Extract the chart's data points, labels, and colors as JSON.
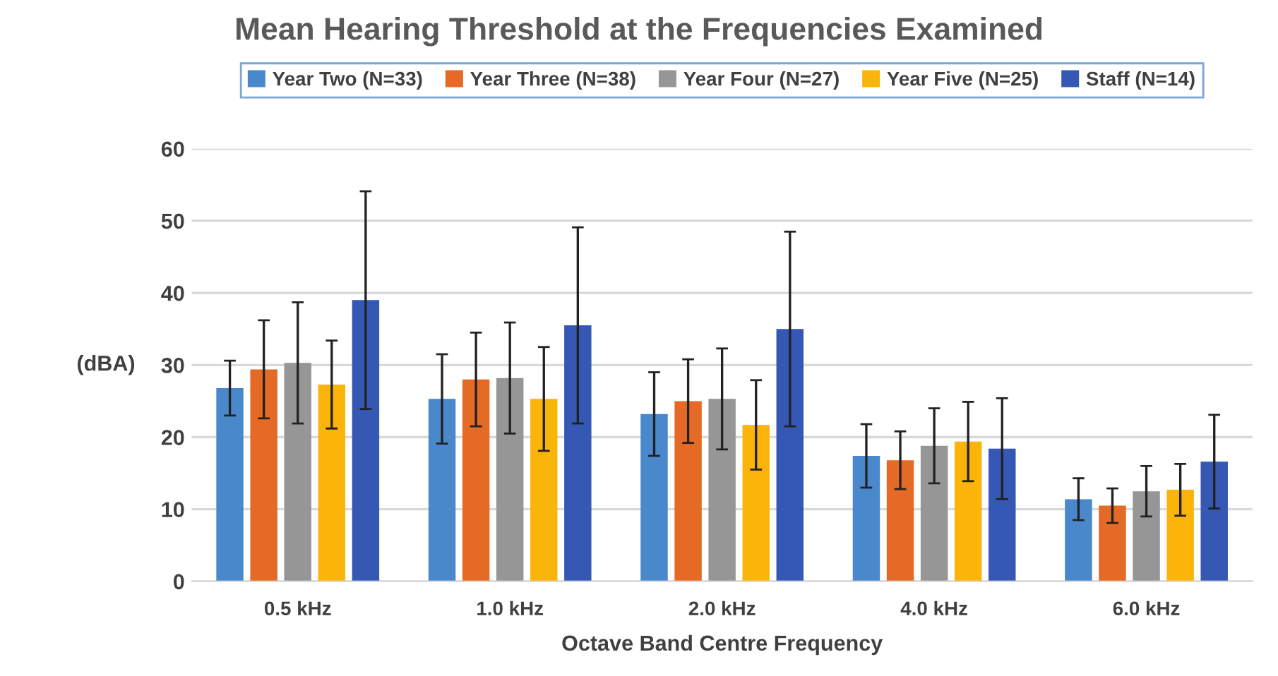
{
  "chart_data": {
    "type": "bar",
    "title": "Mean Hearing Threshold at the Frequencies Examined",
    "xlabel": "Octave Band Centre Frequency",
    "ylabel": "(dBA)",
    "categories": [
      "0.5 kHz",
      "1.0 kHz",
      "2.0 kHz",
      "4.0 kHz",
      "6.0 kHz"
    ],
    "series": [
      {
        "name": "Year Two (N=33)",
        "color": "#4a88cc",
        "values": [
          26.8,
          25.3,
          23.2,
          17.4,
          11.4
        ],
        "errors": [
          3.8,
          6.2,
          5.8,
          4.4,
          2.9
        ]
      },
      {
        "name": "Year Three (N=38)",
        "color": "#e46a25",
        "values": [
          29.4,
          28.0,
          25.0,
          16.8,
          10.5
        ],
        "errors": [
          6.8,
          6.5,
          5.8,
          4.0,
          2.4
        ]
      },
      {
        "name": "Year Four (N=27)",
        "color": "#969696",
        "values": [
          30.3,
          28.2,
          25.3,
          18.8,
          12.5
        ],
        "errors": [
          8.4,
          7.7,
          7.0,
          5.2,
          3.5
        ]
      },
      {
        "name": "Year Five (N=25)",
        "color": "#fbb40a",
        "values": [
          27.3,
          25.3,
          21.7,
          19.4,
          12.7
        ],
        "errors": [
          6.1,
          7.2,
          6.2,
          5.5,
          3.6
        ]
      },
      {
        "name": "Staff (N=14)",
        "color": "#3558b5",
        "values": [
          39.0,
          35.5,
          35.0,
          18.4,
          16.6
        ],
        "errors": [
          15.1,
          13.6,
          13.5,
          7.0,
          6.5
        ]
      }
    ],
    "ylim": [
      0,
      60
    ],
    "yticks": [
      0,
      10,
      20,
      30,
      40,
      50,
      60
    ],
    "grid": "y",
    "legend": "top"
  }
}
